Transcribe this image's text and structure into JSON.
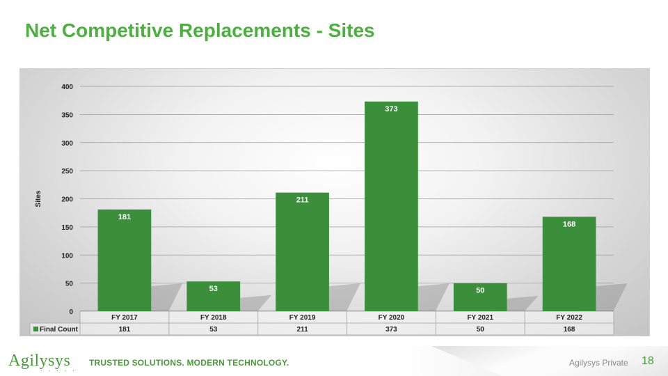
{
  "slide": {
    "title": "Net Competitive Replacements - Sites",
    "page_number": "18"
  },
  "footer": {
    "brand": "Agilysys",
    "brand_dots": "· · · · ·",
    "tagline": "TRUSTED SOLUTIONS. MODERN TECHNOLOGY.",
    "classification": "Agilysys Private"
  },
  "colors": {
    "title": "#4caf3f",
    "bar": "#3b8f3b",
    "bar_label": "#ffffff",
    "brand": "#4a9a3a"
  },
  "chart_data": {
    "type": "bar",
    "title": "",
    "xlabel": "",
    "ylabel": "Sites",
    "categories": [
      "FY 2017",
      "FY 2018",
      "FY 2019",
      "FY 2020",
      "FY 2021",
      "FY 2022"
    ],
    "series": [
      {
        "name": "Final Count",
        "values": [
          181,
          53,
          211,
          373,
          50,
          168
        ]
      }
    ],
    "ylim": [
      0,
      400
    ],
    "yticks": [
      0,
      50,
      100,
      150,
      200,
      250,
      300,
      350,
      400
    ],
    "grid": true,
    "data_labels": true,
    "data_table": true
  }
}
